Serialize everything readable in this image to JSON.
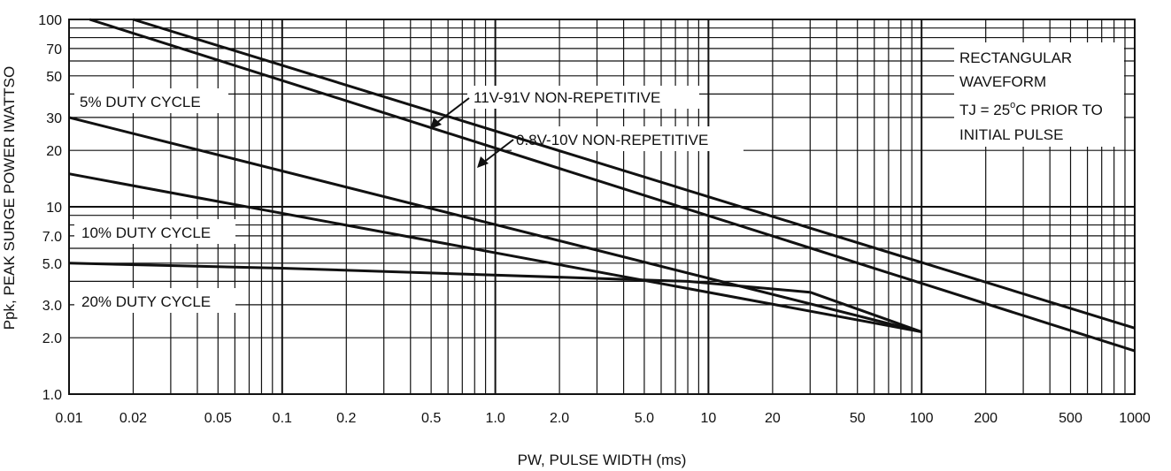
{
  "chart_data": {
    "type": "line",
    "title": "",
    "xlabel": "PW, PULSE WIDTH (ms)",
    "ylabel": "Ppk, PEAK SURGE POWER IWATTSO",
    "xscale": "log",
    "yscale": "log",
    "xlim": [
      0.01,
      1000
    ],
    "ylim": [
      1.0,
      100
    ],
    "grid": true,
    "legend": "none",
    "x_ticks": [
      {
        "v": 0.01,
        "label": "0.01"
      },
      {
        "v": 0.02,
        "label": "0.02"
      },
      {
        "v": 0.05,
        "label": "0.05"
      },
      {
        "v": 0.1,
        "label": "0.1"
      },
      {
        "v": 0.2,
        "label": "0.2"
      },
      {
        "v": 0.5,
        "label": "0.5"
      },
      {
        "v": 1,
        "label": "1.0"
      },
      {
        "v": 2,
        "label": "2.0"
      },
      {
        "v": 5,
        "label": "5.0"
      },
      {
        "v": 10,
        "label": "10"
      },
      {
        "v": 20,
        "label": "20"
      },
      {
        "v": 50,
        "label": "50"
      },
      {
        "v": 100,
        "label": "100"
      },
      {
        "v": 200,
        "label": "200"
      },
      {
        "v": 500,
        "label": "500"
      },
      {
        "v": 1000,
        "label": "1000"
      }
    ],
    "y_ticks": [
      {
        "v": 1.0,
        "label": "1.0"
      },
      {
        "v": 2.0,
        "label": "2.0"
      },
      {
        "v": 3.0,
        "label": "3.0"
      },
      {
        "v": 5.0,
        "label": "5.0"
      },
      {
        "v": 7.0,
        "label": "7.0"
      },
      {
        "v": 10,
        "label": "10"
      },
      {
        "v": 20,
        "label": "20"
      },
      {
        "v": 30,
        "label": "30"
      },
      {
        "v": 50,
        "label": "50"
      },
      {
        "v": 70,
        "label": "70"
      },
      {
        "v": 100,
        "label": "100"
      }
    ],
    "series": [
      {
        "name": "11V-91V NON-REPETITIVE",
        "x": [
          0.02,
          1000
        ],
        "y": [
          100,
          2.25
        ]
      },
      {
        "name": "0.8V-10V NON-REPETITIVE",
        "x": [
          0.0125,
          1000
        ],
        "y": [
          100,
          1.7
        ]
      },
      {
        "name": "5% DUTY CYCLE",
        "x": [
          0.01,
          100
        ],
        "y": [
          30,
          2.15
        ]
      },
      {
        "name": "10% DUTY CYCLE",
        "x": [
          0.01,
          100
        ],
        "y": [
          15,
          2.15
        ]
      },
      {
        "name": "20% DUTY CYCLE",
        "x": [
          0.01,
          0.1,
          8,
          30,
          100
        ],
        "y": [
          5.0,
          4.7,
          4.0,
          3.5,
          2.15
        ]
      }
    ],
    "annotations": {
      "duty5": "5% DUTY CYCLE",
      "duty10": "10% DUTY CYCLE",
      "duty20": "20% DUTY CYCLE",
      "nonrep_hi": "11V-91V NON-REPETITIVE",
      "nonrep_lo": "0.8V-10V NON-REPETITIVE",
      "cond1": "RECTANGULAR",
      "cond2": "WAVEFORM",
      "cond3_pre": "TJ = 25",
      "cond3_deg": "o",
      "cond3_post": "C PRIOR TO",
      "cond4": "INITIAL PULSE"
    }
  }
}
